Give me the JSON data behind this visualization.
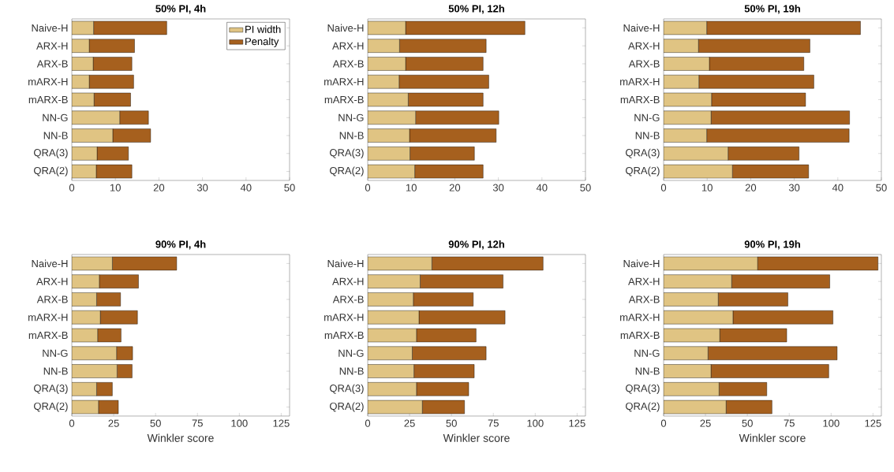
{
  "chart_data": [
    {
      "type": "bar",
      "title": "50% PI, 4h",
      "orientation": "horizontal",
      "stacked": true,
      "legend": "top right",
      "categories": [
        "Naive-H",
        "ARX-H",
        "ARX-B",
        "mARX-H",
        "mARX-B",
        "NN-G",
        "NN-B",
        "QRA(3)",
        "QRA(2)"
      ],
      "series": [
        {
          "name": "PI width",
          "color": "#e0c483",
          "values": [
            5.0,
            4.0,
            4.9,
            4.0,
            5.1,
            11.0,
            9.4,
            5.8,
            5.6
          ]
        },
        {
          "name": "Penalty",
          "color": "#a6601e",
          "values": [
            16.8,
            10.4,
            8.9,
            10.2,
            8.4,
            6.6,
            8.7,
            7.2,
            8.2
          ]
        }
      ],
      "xlim": [
        0,
        50
      ],
      "xticks": [
        0,
        10,
        20,
        30,
        40,
        50
      ]
    },
    {
      "type": "bar",
      "title": "50% PI, 12h",
      "orientation": "horizontal",
      "stacked": true,
      "categories": [
        "Naive-H",
        "ARX-H",
        "ARX-B",
        "mARX-H",
        "mARX-B",
        "NN-G",
        "NN-B",
        "QRA(3)",
        "QRA(2)"
      ],
      "series": [
        {
          "color": "#e0c483",
          "values": [
            8.7,
            7.3,
            8.7,
            7.2,
            9.3,
            11.0,
            9.6,
            9.7,
            10.8
          ]
        },
        {
          "color": "#a6601e",
          "values": [
            27.4,
            19.9,
            17.8,
            20.6,
            17.2,
            19.1,
            19.9,
            14.8,
            15.7
          ]
        }
      ],
      "xlim": [
        0,
        50
      ],
      "xticks": [
        0,
        10,
        20,
        30,
        40,
        50
      ]
    },
    {
      "type": "bar",
      "title": "50% PI, 19h",
      "orientation": "horizontal",
      "stacked": true,
      "categories": [
        "Naive-H",
        "ARX-H",
        "ARX-B",
        "mARX-H",
        "mARX-B",
        "NN-G",
        "NN-B",
        "QRA(3)",
        "QRA(2)"
      ],
      "series": [
        {
          "color": "#e0c483",
          "values": [
            9.9,
            8.0,
            10.5,
            8.1,
            11.0,
            10.9,
            9.9,
            14.8,
            15.8
          ]
        },
        {
          "color": "#a6601e",
          "values": [
            35.3,
            25.6,
            21.7,
            26.4,
            21.6,
            31.8,
            32.7,
            16.3,
            17.5
          ]
        }
      ],
      "xlim": [
        0,
        50
      ],
      "xticks": [
        0,
        10,
        20,
        30,
        40,
        50
      ]
    },
    {
      "type": "bar",
      "title": "90% PI, 4h",
      "orientation": "horizontal",
      "stacked": true,
      "xlabel": "Winkler score",
      "categories": [
        "Naive-H",
        "ARX-H",
        "ARX-B",
        "mARX-H",
        "mARX-B",
        "NN-G",
        "NN-B",
        "QRA(3)",
        "QRA(2)"
      ],
      "series": [
        {
          "color": "#e0c483",
          "values": [
            24.2,
            16.4,
            14.8,
            17.0,
            15.4,
            26.7,
            27.0,
            14.8,
            15.9
          ]
        },
        {
          "color": "#a6601e",
          "values": [
            38.4,
            23.4,
            14.3,
            22.2,
            14.0,
            9.6,
            9.0,
            9.4,
            11.9
          ]
        }
      ],
      "xlim": [
        0,
        130
      ],
      "xticks": [
        0,
        25,
        50,
        75,
        100,
        125
      ]
    },
    {
      "type": "bar",
      "title": "90% PI, 12h",
      "orientation": "horizontal",
      "stacked": true,
      "xlabel": "Winkler score",
      "categories": [
        "Naive-H",
        "ARX-H",
        "ARX-B",
        "mARX-H",
        "mARX-B",
        "NN-G",
        "NN-B",
        "QRA(3)",
        "QRA(2)"
      ],
      "series": [
        {
          "color": "#e0c483",
          "values": [
            38.3,
            31.3,
            27.2,
            30.6,
            29.1,
            26.6,
            27.6,
            29.1,
            32.6
          ]
        },
        {
          "color": "#a6601e",
          "values": [
            66.4,
            49.5,
            35.8,
            51.4,
            35.6,
            44.1,
            36.0,
            31.2,
            25.2
          ]
        }
      ],
      "xlim": [
        0,
        130
      ],
      "xticks": [
        0,
        25,
        50,
        75,
        100,
        125
      ]
    },
    {
      "type": "bar",
      "title": "90% PI, 19h",
      "orientation": "horizontal",
      "stacked": true,
      "xlabel": "Winkler score",
      "categories": [
        "Naive-H",
        "ARX-H",
        "ARX-B",
        "mARX-H",
        "mARX-B",
        "NN-G",
        "NN-B",
        "QRA(3)",
        "QRA(2)"
      ],
      "series": [
        {
          "color": "#e0c483",
          "values": [
            56.1,
            40.6,
            32.6,
            41.4,
            33.5,
            26.5,
            28.3,
            33.1,
            37.3
          ]
        },
        {
          "color": "#a6601e",
          "values": [
            71.9,
            58.6,
            41.6,
            59.7,
            40.0,
            77.1,
            70.3,
            28.5,
            27.4
          ]
        }
      ],
      "xlim": [
        0,
        130
      ],
      "xticks": [
        0,
        25,
        50,
        75,
        100,
        125
      ]
    }
  ]
}
